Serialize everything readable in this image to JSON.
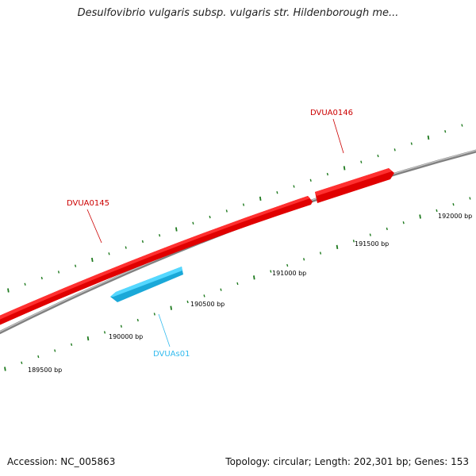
{
  "title": "Desulfovibrio vulgaris subsp. vulgaris str. Hildenborough me...",
  "footer": {
    "accession": "Accession: NC_005863",
    "summary": "Topology: circular; Length: 202,301 bp; Genes: 153"
  },
  "colors": {
    "forward_gene": "#ff0000",
    "reverse_gene": "#40c8f0",
    "backbone": "#888888",
    "tick": "#1e7a1e"
  },
  "genes": [
    {
      "name": "DVUA0145",
      "strand": "forward",
      "color": "#ff0000",
      "label_color": "#cc0000"
    },
    {
      "name": "DVUA0146",
      "strand": "forward",
      "color": "#ff0000",
      "label_color": "#cc0000"
    },
    {
      "name": "DVUAs01",
      "strand": "reverse",
      "color": "#40c8f0",
      "label_color": "#33bbee"
    }
  ],
  "scale_labels": [
    "189500 bp",
    "190000 bp",
    "190500 bp",
    "191000 bp",
    "191500 bp",
    "192000 bp"
  ]
}
